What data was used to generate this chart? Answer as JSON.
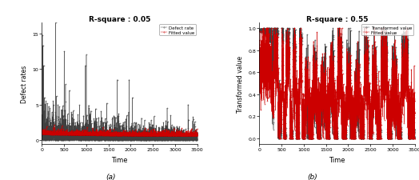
{
  "title_a": "R-square : 0.05",
  "title_b": "R-square : 0.55",
  "xlabel": "Time",
  "ylabel_a": "Defect rates",
  "ylabel_b": "Transformed value",
  "caption_a": "(a)",
  "caption_b": "(b)",
  "legend_a": [
    "Defect rate",
    "Fitted value"
  ],
  "legend_b": [
    "Transformed value",
    "Fitted value"
  ],
  "color_black": "#404040",
  "color_red": "#cc0000",
  "xlim": [
    0,
    3500
  ],
  "ylim_a": [
    -0.5,
    16.5
  ],
  "ylim_b": [
    -0.05,
    1.05
  ],
  "xticks": [
    0,
    500,
    1000,
    1500,
    2000,
    2500,
    3000,
    3500
  ],
  "yticks_a": [
    0,
    5,
    10,
    15
  ],
  "yticks_b": [
    0.0,
    0.2,
    0.4,
    0.6,
    0.8,
    1.0
  ],
  "n_points": 3500,
  "seed": 42
}
